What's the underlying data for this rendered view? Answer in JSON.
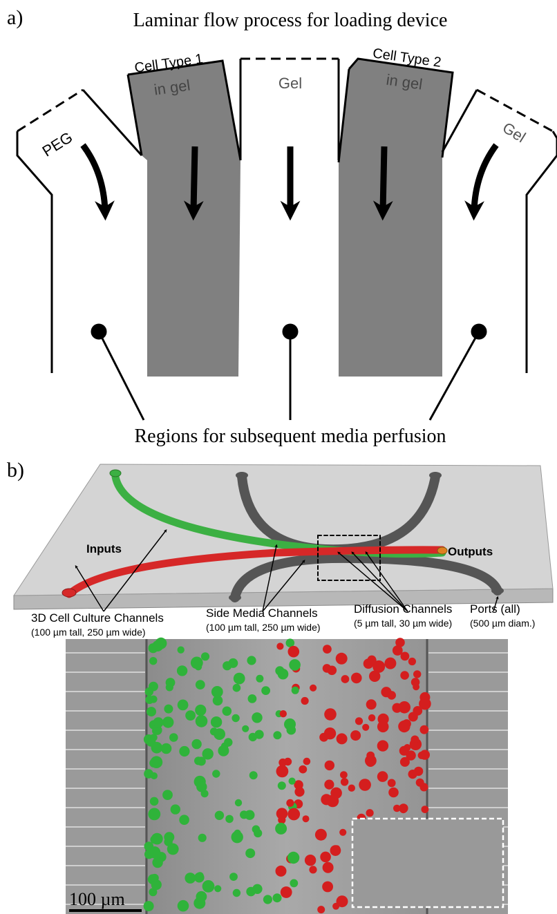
{
  "panel_a": {
    "label": "a)",
    "title": "Laminar flow process for loading device",
    "channels": [
      {
        "label": "PEG"
      },
      {
        "label": "Cell Type 1",
        "sublabel": "in gel"
      },
      {
        "label": "Gel"
      },
      {
        "label": "Cell Type 2",
        "sublabel": "in gel"
      },
      {
        "label": "Gel"
      }
    ],
    "footer": "Regions for subsequent media perfusion"
  },
  "panel_b": {
    "label": "b)",
    "inputs": "Inputs",
    "outputs": "Outputs",
    "callouts": [
      {
        "title": "3D Cell Culture Channels",
        "detail": "(100 µm tall, 250 µm wide)"
      },
      {
        "title": "Side Media Channels",
        "detail": "(100 µm tall, 250 µm wide)"
      },
      {
        "title": "Diffusion Channels",
        "detail": "(5 µm tall, 30 µm wide)"
      },
      {
        "title": "Ports (all)",
        "detail": "(500 µm diam.)"
      }
    ],
    "scale_bar": "100 µm"
  }
}
